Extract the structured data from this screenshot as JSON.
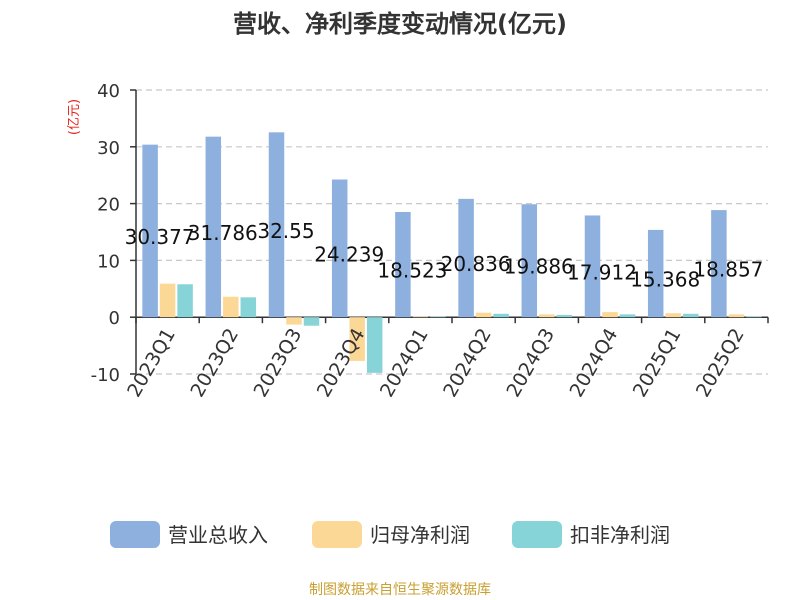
{
  "chart_data": {
    "type": "bar",
    "title": "营收、净利季度变动情况(亿元)",
    "unit_label": "(亿元)",
    "categories": [
      "2023Q1",
      "2023Q2",
      "2023Q3",
      "2023Q4",
      "2024Q1",
      "2024Q2",
      "2024Q3",
      "2024Q4",
      "2025Q1",
      "2025Q2"
    ],
    "series": [
      {
        "name": "营业总收入",
        "color": "#8eb0de",
        "values": [
          30.377,
          31.786,
          32.55,
          24.239,
          18.523,
          20.836,
          19.886,
          17.912,
          15.368,
          18.857
        ],
        "labels": [
          "30.377",
          "31.786",
          "32.55",
          "24.239",
          "18.523",
          "20.836",
          "19.886",
          "17.912",
          "15.368",
          "18.857"
        ]
      },
      {
        "name": "归母净利润",
        "color": "#fcd897",
        "values": [
          5.9,
          3.6,
          -1.3,
          -7.7,
          0.1,
          0.8,
          0.5,
          0.9,
          0.7,
          0.5
        ]
      },
      {
        "name": "扣非净利润",
        "color": "#86d4d8",
        "values": [
          5.8,
          3.5,
          -1.5,
          -9.8,
          0.1,
          0.6,
          0.4,
          0.5,
          0.6,
          0.1
        ]
      }
    ],
    "yticks": [
      40,
      30,
      20,
      10,
      0,
      -10
    ],
    "ylim": [
      -10,
      40
    ],
    "grid": true,
    "legend_position": "bottom"
  },
  "footer": {
    "source": "制图数据来自恒生聚源数据库",
    "source_color": "#c8a030"
  }
}
